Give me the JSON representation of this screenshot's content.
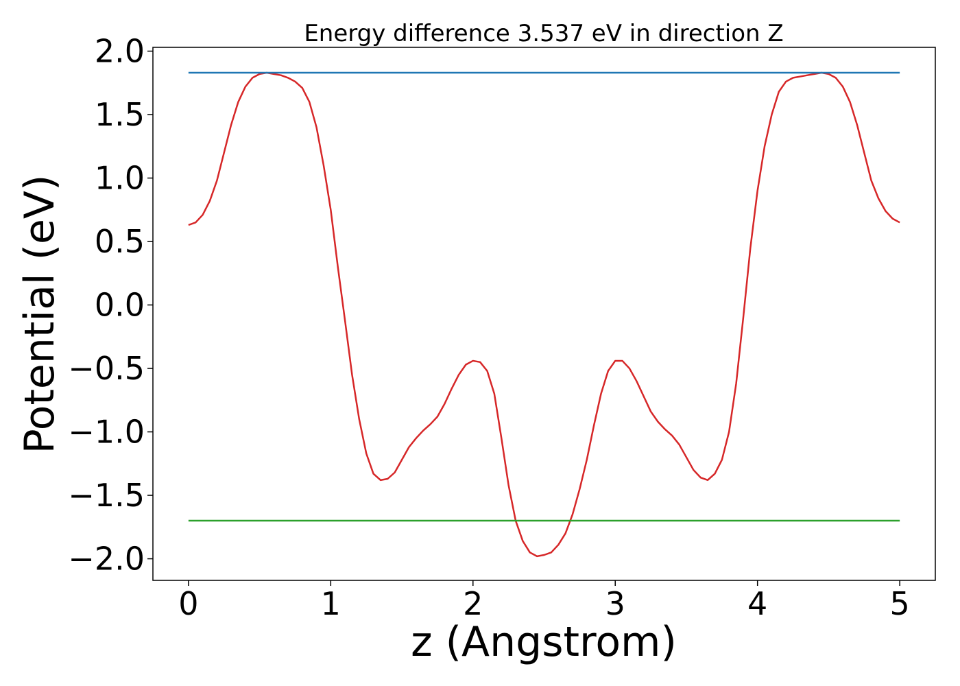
{
  "chart_data": {
    "type": "line",
    "title": "Energy difference 3.537 eV in direction Z",
    "xlabel": "z (Angstrom)",
    "ylabel": "Potential (eV)",
    "xlim": [
      -0.25,
      5.25
    ],
    "ylim": [
      -2.17,
      2.03
    ],
    "grid": false,
    "legend": "none",
    "x_ticks": [
      0,
      1,
      2,
      3,
      4,
      5
    ],
    "x_tick_labels": [
      "0",
      "1",
      "2",
      "3",
      "4",
      "5"
    ],
    "y_ticks": [
      2.0,
      1.5,
      1.0,
      0.5,
      0.0,
      -0.5,
      -1.0,
      -1.5,
      -2.0
    ],
    "y_tick_labels": [
      "2.0",
      "1.5",
      "1.0",
      "0.5",
      "0.0",
      "−0.5",
      "−1.0",
      "−1.5",
      "−2.0"
    ],
    "series": [
      {
        "color": "#d62728",
        "x": [
          0.0,
          0.05,
          0.1,
          0.15,
          0.2,
          0.25,
          0.3,
          0.35,
          0.4,
          0.45,
          0.5,
          0.55,
          0.6,
          0.65,
          0.7,
          0.75,
          0.8,
          0.85,
          0.9,
          0.95,
          1.0,
          1.05,
          1.1,
          1.15,
          1.2,
          1.25,
          1.3,
          1.35,
          1.4,
          1.45,
          1.5,
          1.55,
          1.6,
          1.65,
          1.7,
          1.75,
          1.8,
          1.85,
          1.9,
          1.95,
          2.0,
          2.05,
          2.1,
          2.15,
          2.2,
          2.25,
          2.3,
          2.35,
          2.4,
          2.45,
          2.5,
          2.55,
          2.6,
          2.65,
          2.7,
          2.75,
          2.8,
          2.85,
          2.9,
          2.95,
          3.0,
          3.05,
          3.1,
          3.15,
          3.2,
          3.25,
          3.3,
          3.35,
          3.4,
          3.45,
          3.5,
          3.55,
          3.6,
          3.65,
          3.7,
          3.75,
          3.8,
          3.85,
          3.9,
          3.95,
          4.0,
          4.05,
          4.1,
          4.15,
          4.2,
          4.25,
          4.3,
          4.35,
          4.4,
          4.45,
          4.5,
          4.55,
          4.6,
          4.65,
          4.7,
          4.75,
          4.8,
          4.85,
          4.9,
          4.95,
          5.0
        ],
        "y": [
          0.63,
          0.65,
          0.71,
          0.82,
          0.98,
          1.2,
          1.42,
          1.6,
          1.72,
          1.79,
          1.82,
          1.83,
          1.82,
          1.81,
          1.79,
          1.76,
          1.71,
          1.6,
          1.4,
          1.1,
          0.75,
          0.3,
          -0.12,
          -0.55,
          -0.9,
          -1.17,
          -1.33,
          -1.38,
          -1.37,
          -1.32,
          -1.22,
          -1.12,
          -1.05,
          -0.99,
          -0.94,
          -0.88,
          -0.78,
          -0.66,
          -0.55,
          -0.47,
          -0.44,
          -0.45,
          -0.52,
          -0.7,
          -1.05,
          -1.42,
          -1.7,
          -1.86,
          -1.95,
          -1.98,
          -1.97,
          -1.95,
          -1.89,
          -1.8,
          -1.65,
          -1.45,
          -1.22,
          -0.95,
          -0.7,
          -0.52,
          -0.44,
          -0.44,
          -0.5,
          -0.6,
          -0.72,
          -0.84,
          -0.92,
          -0.98,
          -1.03,
          -1.1,
          -1.2,
          -1.3,
          -1.36,
          -1.38,
          -1.33,
          -1.22,
          -1.0,
          -0.62,
          -0.1,
          0.45,
          0.9,
          1.25,
          1.5,
          1.68,
          1.76,
          1.79,
          1.8,
          1.81,
          1.82,
          1.83,
          1.82,
          1.79,
          1.72,
          1.6,
          1.42,
          1.2,
          0.98,
          0.84,
          0.74,
          0.68,
          0.65
        ]
      },
      {
        "color": "#1f77b4",
        "x": [
          0.0,
          5.0
        ],
        "y": [
          1.83,
          1.83
        ]
      },
      {
        "color": "#2ca02c",
        "x": [
          0.0,
          5.0
        ],
        "y": [
          -1.7,
          -1.7
        ]
      }
    ]
  }
}
